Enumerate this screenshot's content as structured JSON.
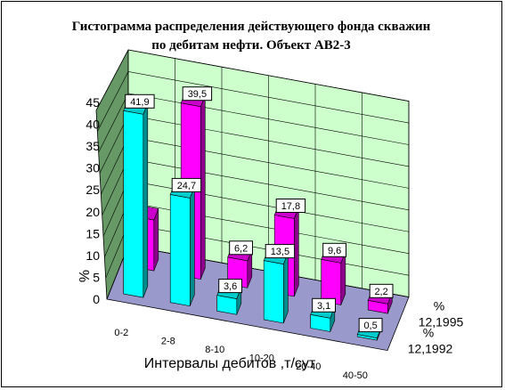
{
  "chart_data": {
    "type": "bar",
    "title": "Гистограмма распределения действующего фонда скважин",
    "subtitle": "по дебитам нефти. Объект АВ2-3",
    "xlabel": "Интервалы дебитов ,т/сут",
    "ylabel": "%",
    "ylim": [
      0,
      45
    ],
    "yticks": [
      "0",
      "5",
      "10",
      "15",
      "20",
      "25",
      "30",
      "35",
      "40",
      "45"
    ],
    "categories": [
      "0-2",
      "2-8",
      "8-10",
      "10-20",
      "20-40",
      "40-50"
    ],
    "series": [
      {
        "name": "% 12,1992",
        "name_line1": "%",
        "name_line2": "12,1992",
        "values": [
          41.9,
          24.7,
          3.6,
          13.5,
          3.1,
          0.5
        ],
        "labels": [
          "41,9",
          "24,7",
          "3,6",
          "13,5",
          "3,1",
          "0,5"
        ],
        "color": "#00ffff"
      },
      {
        "name": "% 12,1995",
        "name_line1": "%",
        "name_line2": "12,1995",
        "values": [
          11.6,
          39.5,
          6.2,
          17.8,
          9.6,
          2.2
        ],
        "labels": [
          "",
          "39,5",
          "6,2",
          "17,8",
          "9,6",
          "2,2"
        ],
        "color": "#ff00ff"
      }
    ],
    "grid": true,
    "chart_style": "3d-column",
    "colors": {
      "back_wall": "#ccffcc",
      "side_wall": "#669966",
      "floor": "#9999cc",
      "gridline": "#000000"
    }
  }
}
